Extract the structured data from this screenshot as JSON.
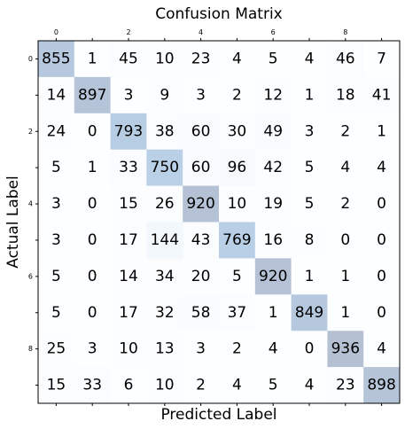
{
  "chart_data": {
    "type": "heatmap",
    "title": "Confusion Matrix",
    "xlabel": "Predicted Label",
    "ylabel": "Actual Label",
    "x_ticks_position": "top",
    "x_tick_labels": [
      "0",
      "",
      "2",
      "",
      "4",
      "",
      "6",
      "",
      "8",
      ""
    ],
    "y_tick_labels": [
      "0",
      "",
      "2",
      "",
      "4",
      "",
      "6",
      "",
      "8",
      ""
    ],
    "grid": false,
    "colormap": "Blues",
    "color_alpha": 0.3,
    "matrix": [
      [
        855,
        1,
        45,
        10,
        23,
        4,
        5,
        4,
        46,
        7
      ],
      [
        14,
        897,
        3,
        9,
        3,
        2,
        12,
        1,
        18,
        41
      ],
      [
        24,
        0,
        793,
        38,
        60,
        30,
        49,
        3,
        2,
        1
      ],
      [
        5,
        1,
        33,
        750,
        60,
        96,
        42,
        5,
        4,
        4
      ],
      [
        3,
        0,
        15,
        26,
        920,
        10,
        19,
        5,
        2,
        0
      ],
      [
        3,
        0,
        17,
        144,
        43,
        769,
        16,
        8,
        0,
        0
      ],
      [
        5,
        0,
        14,
        34,
        20,
        5,
        920,
        1,
        1,
        0
      ],
      [
        5,
        0,
        17,
        32,
        58,
        37,
        1,
        849,
        1,
        0
      ],
      [
        25,
        3,
        10,
        13,
        3,
        2,
        4,
        0,
        936,
        4
      ],
      [
        15,
        33,
        6,
        10,
        2,
        4,
        5,
        4,
        23,
        898
      ]
    ]
  }
}
